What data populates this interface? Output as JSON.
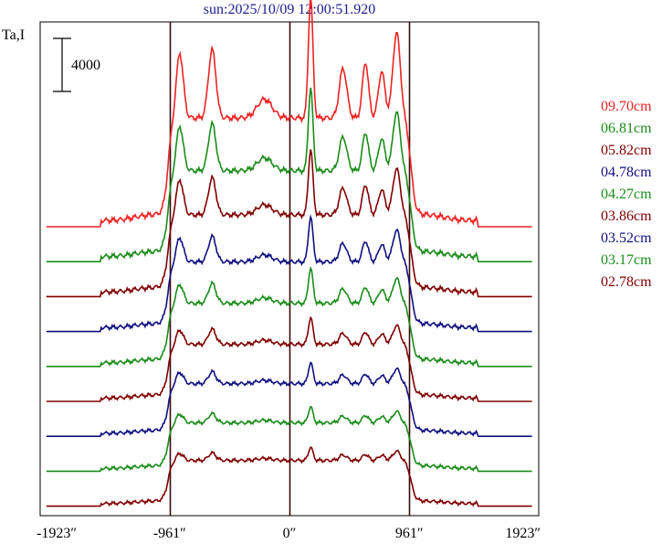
{
  "title": "sun:2025/10/09 12:00:51.920",
  "ylabel": "Ta,I",
  "scale_bar_label": "4000",
  "chart_data": {
    "type": "line",
    "title": "sun:2025/10/09 12:00:51.920",
    "ylabel": "Ta,I",
    "xlabel": "",
    "xlim": [
      -2000,
      2000
    ],
    "x_ticks": [
      -1923,
      -961,
      0,
      961,
      1923
    ],
    "x_tick_labels": [
      "-1923″",
      "-961″",
      "0″",
      "961″",
      "1923″"
    ],
    "vertical_lines": [
      -961,
      0,
      961
    ],
    "scale_bar": 4000,
    "series": [
      {
        "name": "09.70cm",
        "color": "#ee2222",
        "offset": 0,
        "amp": 1.0
      },
      {
        "name": "06.81cm",
        "color": "#1a8c1a",
        "offset": 1,
        "amp": 0.82
      },
      {
        "name": "05.82cm",
        "color": "#800000",
        "offset": 2,
        "amp": 0.72
      },
      {
        "name": "04.78cm",
        "color": "#101080",
        "offset": 3,
        "amp": 0.58
      },
      {
        "name": "04.27cm",
        "color": "#1a8c1a",
        "offset": 4,
        "amp": 0.5
      },
      {
        "name": "03.86cm",
        "color": "#800000",
        "offset": 5,
        "amp": 0.42
      },
      {
        "name": "03.52cm",
        "color": "#101080",
        "offset": 6,
        "amp": 0.36
      },
      {
        "name": "03.17cm",
        "color": "#1a8c1a",
        "offset": 7,
        "amp": 0.3
      },
      {
        "name": "02.78cm",
        "color": "#800000",
        "offset": 8,
        "amp": 0.26
      }
    ]
  }
}
